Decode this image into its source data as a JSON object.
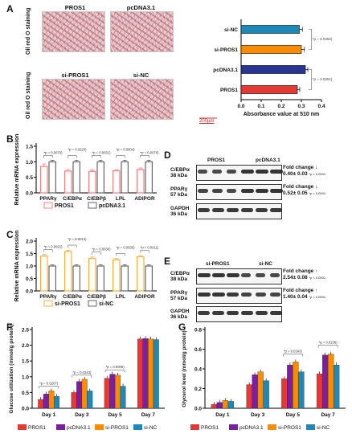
{
  "panels": {
    "A": "A",
    "B": "B",
    "C": "C",
    "D": "D",
    "E": "E",
    "F": "F",
    "G": "G"
  },
  "panel_a": {
    "captions": [
      "PROS1",
      "pcDNA3.1",
      "si-PROS1",
      "si-NC"
    ],
    "ylabel": "Oil red O staining",
    "scale": "200μm"
  },
  "panel_d": {
    "groups": [
      "PROS1",
      "pcDNA3.1"
    ],
    "rows": [
      "C/EBPα\n38 kDa",
      "PPARγ\n57 kDa",
      "GAPDH\n36 kDa"
    ],
    "row1": "C/EBPα",
    "row1b": "38 kDa",
    "row2": "PPARγ",
    "row2b": "57 kDa",
    "row3": "GAPDH",
    "row3b": "36 kDa",
    "fc_label": "Fold change",
    "fc1": "0.40± 0.03",
    "fc1p": "*p < 0.0001",
    "fc2": "0.52± 0.05",
    "fc2p": "*p < 0.0001"
  },
  "panel_e": {
    "groups": [
      "si-PROS1",
      "si-NC"
    ],
    "row1": "C/EBPα",
    "row1b": "38 kDa",
    "row2": "PPARγ",
    "row2b": "57 kDa",
    "row3": "GAPDH",
    "row3b": "36 kDa",
    "fc_label": "Fold change",
    "fc1": "2.54± 0.08",
    "fc1p": "*p < 0.0001",
    "fc2": "1.40± 0.04",
    "fc2p": "*p < 0.0001"
  },
  "colors": {
    "pros1": "#e53935",
    "pcdna": "#7b1fa2",
    "sipros1": "#fb8c00",
    "sinc": "#1e88b8",
    "grey": "#666666",
    "b_pros1_edge": "#f08080",
    "c_sipros1_edge": "#f5b041"
  },
  "chart_data": [
    {
      "id": "A-bar",
      "type": "bar",
      "orientation": "horizontal",
      "categories": [
        "si-NC",
        "si-PROS1",
        "pcDNA3.1",
        "PROS1"
      ],
      "values": [
        0.29,
        0.3,
        0.32,
        0.28
      ],
      "errors": [
        0.015,
        0.015,
        0.012,
        0.012
      ],
      "colors": [
        "#1e88b8",
        "#fb8c00",
        "#283593",
        "#e53935"
      ],
      "xlabel": "Absorbance value at 510 nm",
      "xlim": [
        0.0,
        0.4
      ],
      "xticks": [
        "0.0",
        "0.1",
        "0.2",
        "0.3",
        "0.4"
      ],
      "annotations": [
        "*p = 0.0352)",
        "*p = 0.0351)"
      ]
    },
    {
      "id": "B",
      "type": "bar",
      "categories": [
        "PPARγ",
        "C/EBPα",
        "C/EBPβ",
        "LPL",
        "ADIPOR"
      ],
      "series": [
        {
          "name": "PROS1",
          "values": [
            0.85,
            0.7,
            0.69,
            0.71,
            0.75
          ],
          "errors": [
            0.08,
            0.05,
            0.05,
            0.04,
            0.05
          ]
        },
        {
          "name": "pcDNA3.1",
          "values": [
            1.0,
            1.0,
            1.0,
            1.0,
            1.0
          ],
          "errors": [
            0.05,
            0.05,
            0.05,
            0.05,
            0.05
          ]
        }
      ],
      "ylabel": "Relative mRNA expression",
      "ylim": [
        0,
        1.5
      ],
      "yticks": [
        "0.0",
        "0.5",
        "1.0",
        "1.5"
      ],
      "annotations": [
        "*p = 0.0070)",
        "*p = 0.0220)",
        "*p = 0.0031)",
        "*p = 0.0004)",
        "*p = 0.0076)"
      ]
    },
    {
      "id": "C",
      "type": "bar",
      "categories": [
        "PPARγ",
        "C/EBPα",
        "C/EBPβ",
        "LPL",
        "ADIPOR"
      ],
      "series": [
        {
          "name": "si-PROS1",
          "values": [
            1.4,
            1.58,
            1.3,
            1.25,
            1.37
          ],
          "errors": [
            0.06,
            0.05,
            0.06,
            0.05,
            0.05
          ]
        },
        {
          "name": "si-NC",
          "values": [
            1.0,
            1.0,
            1.0,
            1.0,
            1.0
          ],
          "errors": [
            0.05,
            0.05,
            0.05,
            0.05,
            0.05
          ]
        }
      ],
      "ylabel": "Relative mRNA expression",
      "ylim": [
        0,
        2.0
      ],
      "yticks": [
        "0.0",
        "0.5",
        "1.0",
        "1.5",
        "2.0"
      ],
      "annotations": [
        "*p = 0.0022)",
        "*p = 0.0013)",
        "*p = 0.0030)",
        "*p = 0.0035)",
        "*p = 0.0011)"
      ]
    },
    {
      "id": "F",
      "type": "bar",
      "categories": [
        "Day 1",
        "Day 3",
        "Day 5",
        "Day 7"
      ],
      "series": [
        {
          "name": "PROS1",
          "values": [
            0.28,
            0.5,
            0.95,
            2.2
          ]
        },
        {
          "name": "pcDNA3.1",
          "values": [
            0.45,
            0.85,
            1.08,
            2.21
          ]
        },
        {
          "name": "si-PROS1",
          "values": [
            0.55,
            0.92,
            1.05,
            2.2
          ]
        },
        {
          "name": "si-NC",
          "values": [
            0.38,
            0.55,
            0.7,
            2.18
          ]
        }
      ],
      "ylabel": "Glucose utilization (mmol/g protein)",
      "ylim": [
        0,
        2.5
      ],
      "yticks": [
        "0.0",
        "0.5",
        "1.0",
        "1.5",
        "2.0",
        "2.5"
      ],
      "annotations": [
        "*p = 0.0207)",
        "*p = 0.0243)",
        "*p = 0.0006)"
      ]
    },
    {
      "id": "G",
      "type": "bar",
      "categories": [
        "Day 1",
        "Day 3",
        "Day 5",
        "Day 7"
      ],
      "series": [
        {
          "name": "PROS1",
          "values": [
            0.04,
            0.24,
            0.3,
            0.35
          ]
        },
        {
          "name": "pcDNA3.1",
          "values": [
            0.06,
            0.34,
            0.44,
            0.54
          ]
        },
        {
          "name": "si-PROS1",
          "values": [
            0.08,
            0.37,
            0.47,
            0.55
          ]
        },
        {
          "name": "si-NC",
          "values": [
            0.07,
            0.28,
            0.37,
            0.44
          ]
        }
      ],
      "ylabel": "Glycerol level (mmol/g protein)",
      "ylim": [
        0,
        0.8
      ],
      "yticks": [
        "0.0",
        "0.2",
        "0.4",
        "0.6",
        "0.8"
      ],
      "annotations": [
        "*p = 0.0243)",
        "*p = 0.0236)"
      ]
    }
  ]
}
